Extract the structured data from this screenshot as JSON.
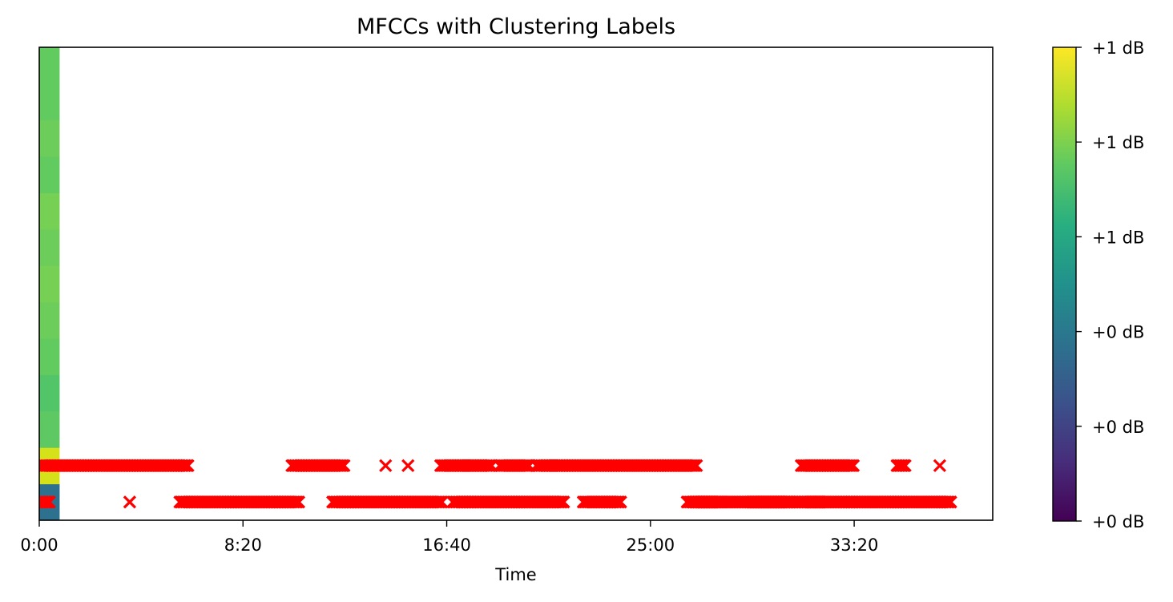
{
  "chart_data": {
    "type": "scatter",
    "title": "MFCCs with Clustering Labels",
    "xlabel": "Time",
    "ylabel": "",
    "xlim": [
      0,
      2340
    ],
    "ylim": [
      -0.5,
      12.5
    ],
    "x_ticks": [
      0,
      500,
      1000,
      1500,
      2000
    ],
    "x_tick_labels": [
      "0:00",
      "8:20",
      "16:40",
      "25:00",
      "33:20"
    ],
    "grid": false,
    "heatmap": {
      "x_range": [
        0,
        50
      ],
      "rows": 13,
      "row_colors": [
        "#2d718e",
        "#d5e21a",
        "#5ec962",
        "#52c569",
        "#62cb5f",
        "#6ccd5a",
        "#75d054",
        "#6ccd5a",
        "#75d054",
        "#62cb5f",
        "#6ccd5a",
        "#62cb5f",
        "#62cb5f"
      ]
    },
    "colorbar": {
      "colormap": "viridis",
      "tick_labels": [
        "+0 dB",
        "+0 dB",
        "+0 dB",
        "+1 dB",
        "+1 dB",
        "+1 dB"
      ]
    },
    "series": [
      {
        "marker": "x",
        "color": "#ff0000",
        "cluster_rows": [
          {
            "label": 0,
            "segments": [
              [
                5,
                25
              ],
              [
                222,
                222
              ],
              [
                345,
                640
              ],
              [
                720,
                990
              ],
              [
                1015,
                1290
              ],
              [
                1335,
                1428
              ],
              [
                1590,
                1675
              ],
              [
                1750,
                1845
              ],
              [
                1895,
                1915
              ],
              [
                1605,
                2240
              ]
            ],
            "singles": [
              222,
              1915
            ]
          },
          {
            "label": 1,
            "segments": [
              [
                5,
                365
              ],
              [
                620,
                750
              ],
              [
                985,
                1045
              ],
              [
                1050,
                1110
              ],
              [
                1130,
                1205
              ],
              [
                1220,
                1260
              ],
              [
                1265,
                1615
              ],
              [
                1870,
                2000
              ],
              [
                2105,
                2125
              ],
              [
                2210,
                2210
              ]
            ],
            "singles": [
              850,
              905,
              2210
            ]
          }
        ]
      }
    ]
  }
}
